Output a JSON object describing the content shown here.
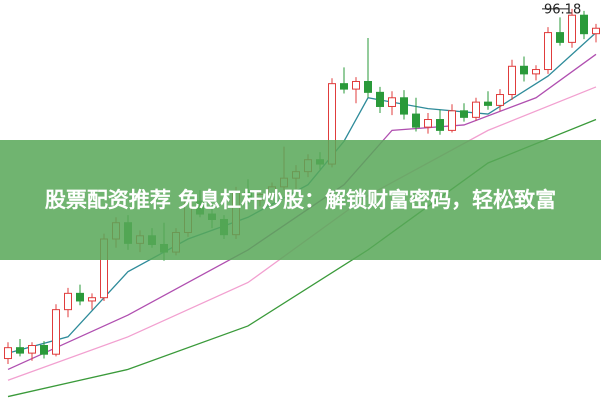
{
  "banner": {
    "title": "股票配资推荐 免息杠杆炒股：解锁财富密码，轻松致富"
  },
  "chart_data": {
    "type": "candlestick",
    "ylim": [
      60,
      97
    ],
    "up_color": "#e03c3c",
    "down_color": "#2a9a3a",
    "candles": [
      {
        "open": 64.0,
        "high": 65.5,
        "low": 63.5,
        "close": 65.0
      },
      {
        "open": 65.0,
        "high": 65.8,
        "low": 64.2,
        "close": 64.5
      },
      {
        "open": 64.5,
        "high": 65.5,
        "low": 63.8,
        "close": 65.2
      },
      {
        "open": 65.2,
        "high": 65.6,
        "low": 64.0,
        "close": 64.4
      },
      {
        "open": 64.4,
        "high": 69.0,
        "low": 64.2,
        "close": 68.5
      },
      {
        "open": 68.5,
        "high": 70.5,
        "low": 67.8,
        "close": 70.0
      },
      {
        "open": 70.0,
        "high": 70.8,
        "low": 68.9,
        "close": 69.3
      },
      {
        "open": 69.3,
        "high": 70.0,
        "low": 68.5,
        "close": 69.6
      },
      {
        "open": 69.6,
        "high": 75.5,
        "low": 69.3,
        "close": 75.0
      },
      {
        "open": 75.0,
        "high": 77.0,
        "low": 74.2,
        "close": 76.5
      },
      {
        "open": 76.5,
        "high": 77.2,
        "low": 74.0,
        "close": 74.6
      },
      {
        "open": 74.6,
        "high": 75.8,
        "low": 73.8,
        "close": 75.3
      },
      {
        "open": 75.3,
        "high": 76.0,
        "low": 74.2,
        "close": 74.5
      },
      {
        "open": 74.5,
        "high": 76.5,
        "low": 73.0,
        "close": 73.8
      },
      {
        "open": 73.8,
        "high": 76.0,
        "low": 73.5,
        "close": 75.6
      },
      {
        "open": 75.6,
        "high": 79.0,
        "low": 75.2,
        "close": 78.5
      },
      {
        "open": 78.5,
        "high": 79.5,
        "low": 77.0,
        "close": 77.3
      },
      {
        "open": 77.3,
        "high": 78.2,
        "low": 76.0,
        "close": 76.8
      },
      {
        "open": 76.8,
        "high": 77.2,
        "low": 75.0,
        "close": 75.4
      },
      {
        "open": 75.4,
        "high": 79.8,
        "low": 75.0,
        "close": 79.3
      },
      {
        "open": 79.3,
        "high": 80.5,
        "low": 78.2,
        "close": 78.6
      },
      {
        "open": 78.6,
        "high": 79.5,
        "low": 78.0,
        "close": 79.1
      },
      {
        "open": 79.1,
        "high": 80.2,
        "low": 78.5,
        "close": 79.8
      },
      {
        "open": 79.8,
        "high": 83.5,
        "low": 79.5,
        "close": 80.6
      },
      {
        "open": 80.6,
        "high": 81.8,
        "low": 79.6,
        "close": 81.2
      },
      {
        "open": 81.2,
        "high": 82.8,
        "low": 80.7,
        "close": 82.3
      },
      {
        "open": 82.3,
        "high": 83.0,
        "low": 81.4,
        "close": 81.9
      },
      {
        "open": 81.9,
        "high": 89.8,
        "low": 81.6,
        "close": 89.3
      },
      {
        "open": 89.3,
        "high": 90.8,
        "low": 88.4,
        "close": 88.8
      },
      {
        "open": 88.8,
        "high": 89.9,
        "low": 87.5,
        "close": 89.5
      },
      {
        "open": 89.5,
        "high": 93.5,
        "low": 88.0,
        "close": 88.5
      },
      {
        "open": 88.5,
        "high": 89.0,
        "low": 86.6,
        "close": 87.2
      },
      {
        "open": 87.2,
        "high": 88.6,
        "low": 86.4,
        "close": 88.0
      },
      {
        "open": 88.0,
        "high": 88.7,
        "low": 86.0,
        "close": 86.5
      },
      {
        "open": 86.5,
        "high": 88.0,
        "low": 84.9,
        "close": 85.3
      },
      {
        "open": 85.3,
        "high": 86.6,
        "low": 84.7,
        "close": 86.0
      },
      {
        "open": 86.0,
        "high": 86.9,
        "low": 84.6,
        "close": 85.0
      },
      {
        "open": 85.0,
        "high": 87.4,
        "low": 84.8,
        "close": 86.8
      },
      {
        "open": 86.8,
        "high": 87.5,
        "low": 85.8,
        "close": 86.2
      },
      {
        "open": 86.2,
        "high": 88.0,
        "low": 85.9,
        "close": 87.6
      },
      {
        "open": 87.6,
        "high": 88.6,
        "low": 86.9,
        "close": 87.3
      },
      {
        "open": 87.3,
        "high": 88.8,
        "low": 86.8,
        "close": 88.3
      },
      {
        "open": 88.3,
        "high": 91.5,
        "low": 87.8,
        "close": 90.9
      },
      {
        "open": 90.9,
        "high": 91.8,
        "low": 89.5,
        "close": 90.2
      },
      {
        "open": 90.2,
        "high": 91.0,
        "low": 89.6,
        "close": 90.6
      },
      {
        "open": 90.6,
        "high": 94.5,
        "low": 90.2,
        "close": 94.0
      },
      {
        "open": 94.0,
        "high": 95.4,
        "low": 92.8,
        "close": 93.1
      },
      {
        "open": 93.1,
        "high": 96.18,
        "low": 92.6,
        "close": 95.6
      },
      {
        "open": 95.6,
        "high": 96.0,
        "low": 93.4,
        "close": 93.9
      },
      {
        "open": 93.9,
        "high": 94.8,
        "low": 93.1,
        "close": 94.4
      }
    ],
    "lines": [
      {
        "color": "#2e8b9a",
        "x": [
          0,
          5,
          10,
          15,
          20,
          25,
          28,
          30,
          35,
          40,
          45,
          49
        ],
        "values": [
          64.5,
          66,
          72,
          75,
          77,
          80,
          84,
          88,
          87,
          86.5,
          90,
          94
        ]
      },
      {
        "color": "#b04fb0",
        "x": [
          0,
          10,
          20,
          28,
          32,
          38,
          44,
          49
        ],
        "values": [
          63,
          68,
          74,
          80,
          85,
          85.5,
          88,
          92
        ]
      },
      {
        "color": "#f2a0d0",
        "x": [
          0,
          10,
          20,
          30,
          40,
          49
        ],
        "values": [
          62,
          66,
          71,
          79,
          85,
          89
        ]
      },
      {
        "color": "#3a9a3a",
        "x": [
          0,
          10,
          20,
          30,
          40,
          49
        ],
        "values": [
          60.5,
          63,
          67,
          74,
          82,
          86
        ]
      }
    ]
  }
}
